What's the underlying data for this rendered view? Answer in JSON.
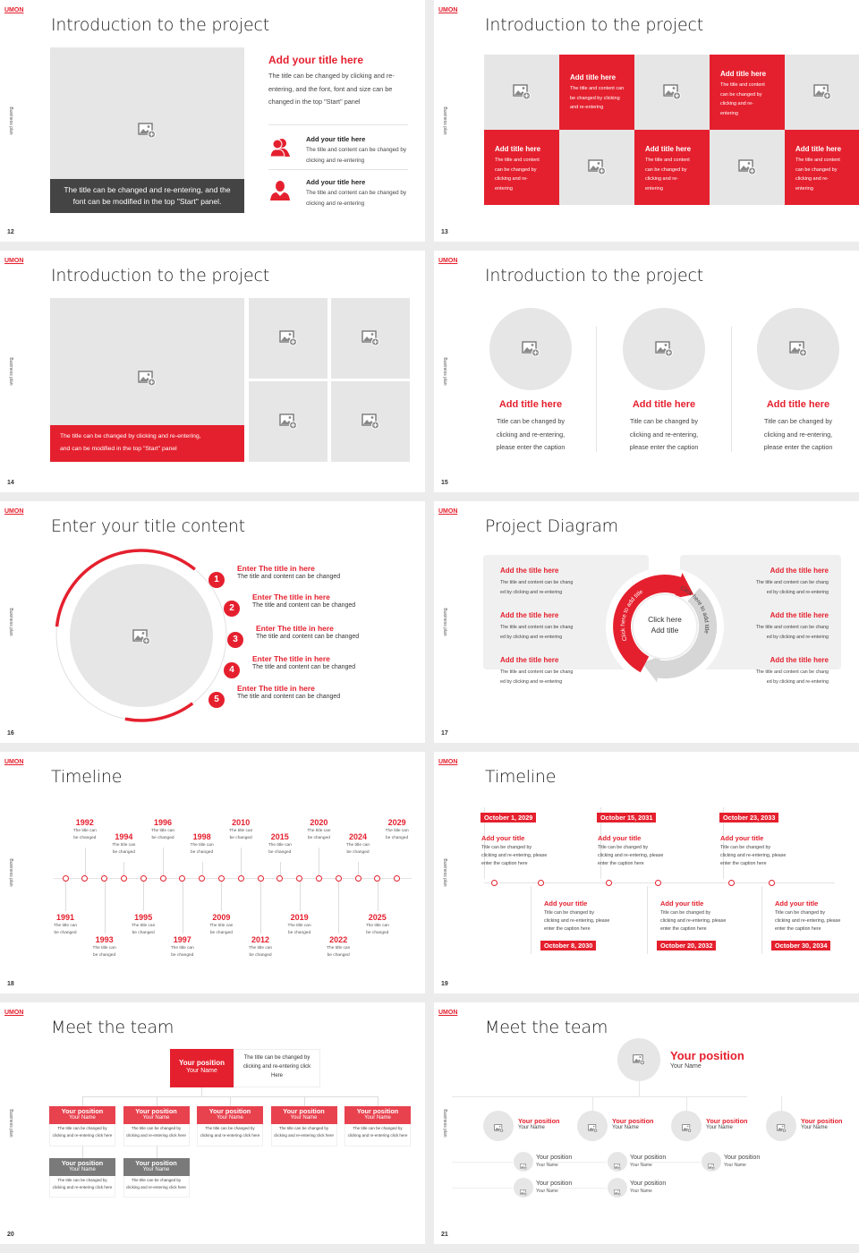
{
  "logo": "UMON",
  "side_label": "Business plan",
  "colors": {
    "accent": "#e5202e",
    "accent_light": "#e8424f",
    "placeholder": "#e6e6e6",
    "dark": "#444444",
    "muted_box": "#7a7a7a"
  },
  "slides": [
    {
      "page": "12",
      "title": "Introduction to the project",
      "caption": "The title can be changed and re-entering, and the font can be modified in the top \"Start\" panel.",
      "heading": "Add your title here",
      "paragraph": "The title can be changed by clicking and re-entering, and the font, font and size can be changed in the top \"Start\" panel",
      "items": [
        {
          "icon": "people-icon",
          "title": "Add your title here",
          "text": "The title and content can be changed by clicking and re-entering"
        },
        {
          "icon": "person-icon",
          "title": "Add your title here",
          "text": "The title and content can be changed by clicking and re-entering"
        }
      ]
    },
    {
      "page": "13",
      "title": "Introduction to the project",
      "tiles": [
        {
          "title": "Add title here",
          "text": "The title and content can be changed by clicking and re-entering"
        },
        {
          "title": "Add title here",
          "text": "The title and content can be changed by clicking and re-entering"
        },
        {
          "title": "Add title here",
          "text": "The title and content can be changed by clicking and re-entering"
        },
        {
          "title": "Add title here",
          "text": "The title and content can be changed by clicking and re-entering"
        },
        {
          "title": "Add title here",
          "text": "The title and content can be changed by clicking and re-entering"
        }
      ]
    },
    {
      "page": "14",
      "title": "Introduction to the project",
      "caption": "The title can be changed by clicking and re-entering,\nand can be modified in the top \"Start\" panel"
    },
    {
      "page": "15",
      "title": "Introduction to the project",
      "columns": [
        {
          "title": "Add title here",
          "text": "Title can be changed by\nclicking and re-entering,\nplease enter the caption"
        },
        {
          "title": "Add title here",
          "text": "Title can be changed by\nclicking and re-entering,\nplease enter the caption"
        },
        {
          "title": "Add title here",
          "text": "Title can be changed by\nclicking and re-entering,\nplease enter the caption"
        }
      ]
    },
    {
      "page": "16",
      "title": "Enter your title content",
      "items": [
        {
          "number": "1",
          "title": "Enter The title in here",
          "text": "The title and content can be changed"
        },
        {
          "number": "2",
          "title": "Enter The title in here",
          "text": "The title and content can be changed"
        },
        {
          "number": "3",
          "title": "Enter The title in here",
          "text": "The title and content can be changed"
        },
        {
          "number": "4",
          "title": "Enter The title in here",
          "text": "The title and content can be changed"
        },
        {
          "number": "5",
          "title": "Enter The title in here",
          "text": "The title and content can be changed"
        }
      ]
    },
    {
      "page": "17",
      "title": "Project Diagram",
      "center": "Click here\nAdd title",
      "arc_left": "Click here to add title",
      "arc_right": "Click here to add title",
      "left_items": [
        {
          "title": "Add the title here",
          "text": "The title and content can be chang\ned by clicking and re-entering"
        },
        {
          "title": "Add the title here",
          "text": "The title and content can be chang\ned by clicking and re-entering"
        },
        {
          "title": "Add the title here",
          "text": "The title and content can be chang\ned by clicking and re-entering"
        }
      ],
      "right_items": [
        {
          "title": "Add the title here",
          "text": "The title and content can be chang\ned by clicking and re-entering"
        },
        {
          "title": "Add the title here",
          "text": "The title and content can be chang\ned by clicking and re-entering"
        },
        {
          "title": "Add the title here",
          "text": "The title and content can be chang\ned by clicking and re-entering"
        }
      ]
    },
    {
      "page": "18",
      "title": "Timeline",
      "events": [
        {
          "year": "1991",
          "text": "The title can be changed"
        },
        {
          "year": "1992",
          "text": "The title can be changed"
        },
        {
          "year": "1993",
          "text": "The title can be changed"
        },
        {
          "year": "1994",
          "text": "The title can be changed"
        },
        {
          "year": "1995",
          "text": "The title can be changed"
        },
        {
          "year": "1996",
          "text": "The title can be changed"
        },
        {
          "year": "1997",
          "text": "The title can be changed"
        },
        {
          "year": "1998",
          "text": "The title can be changed"
        },
        {
          "year": "2009",
          "text": "The title can be changed"
        },
        {
          "year": "2010",
          "text": "The title can be changed"
        },
        {
          "year": "2012",
          "text": "The title can be changed"
        },
        {
          "year": "2015",
          "text": "The title can be changed"
        },
        {
          "year": "2019",
          "text": "The title can be changed"
        },
        {
          "year": "2020",
          "text": "The title can be changed"
        },
        {
          "year": "2022",
          "text": "The title can be changed"
        },
        {
          "year": "2024",
          "text": "The title can be changed"
        },
        {
          "year": "2025",
          "text": "The title can be changed"
        },
        {
          "year": "2029",
          "text": "The title can be changed"
        }
      ]
    },
    {
      "page": "19",
      "title": "Timeline",
      "events": [
        {
          "date": "October 1, 2029",
          "title": "Add your title",
          "text": "Title can be changed by\nclicking and re-entering, please\nenter the caption here"
        },
        {
          "date": "October 8, 2030",
          "title": "Add your title",
          "text": "Title can be changed by\nclicking and re-entering, please\nenter the caption here"
        },
        {
          "date": "October 15, 2031",
          "title": "Add your title",
          "text": "Title can be changed by\nclicking and re-entering, please\nenter the caption here"
        },
        {
          "date": "October 20, 2032",
          "title": "Add your title",
          "text": "Title can be changed by\nclicking and re-entering, please\nenter the caption here"
        },
        {
          "date": "October 23, 2033",
          "title": "Add your title",
          "text": "Title can be changed by\nclicking and re-entering, please\nenter the caption here"
        },
        {
          "date": "October 30, 2034",
          "title": "Add your title",
          "text": "Title can be changed by\nclicking and re-entering, please\nenter the caption here"
        }
      ]
    },
    {
      "page": "20",
      "title": "Meet the team",
      "lead": {
        "position": "Your position",
        "name": "Your Name",
        "text": "The title can be changed by clicking and re-entering click Here"
      },
      "members": [
        {
          "position": "Your position",
          "name": "Your Name",
          "text": "The title can be changed by clicking and re-entering click here"
        },
        {
          "position": "Your position",
          "name": "Your Name",
          "text": "The title can be changed by clicking and re-entering click here"
        },
        {
          "position": "Your position",
          "name": "Your Name",
          "text": "The title can be changed by clicking and re-entering click here"
        },
        {
          "position": "Your position",
          "name": "Your Name",
          "text": "The title can be changed by clicking and re-entering click here"
        },
        {
          "position": "Your position",
          "name": "Your Name",
          "text": "The title can be changed by clicking and re-entering click here"
        },
        {
          "position": "Your position",
          "name": "Your Name",
          "text": "The title can be changed by clicking and re-entering click here"
        },
        {
          "position": "Your position",
          "name": "Your Name",
          "text": "The title can be changed by clicking and re-entering click here"
        }
      ]
    },
    {
      "page": "21",
      "title": "Meet the team",
      "lead": {
        "position": "Your position",
        "name": "Your Name"
      },
      "level1": [
        {
          "position": "Your position",
          "name": "Your Name"
        },
        {
          "position": "Your position",
          "name": "Your Name"
        },
        {
          "position": "Your position",
          "name": "Your Name"
        },
        {
          "position": "Your position",
          "name": "Your Name"
        }
      ],
      "level2": [
        {
          "position": "Your position",
          "name": "Your Name"
        },
        {
          "position": "Your position",
          "name": "Your Name"
        },
        {
          "position": "Your position",
          "name": "Your Name"
        },
        {
          "position": "Your position",
          "name": "Your Name"
        },
        {
          "position": "Your position",
          "name": "Your Name"
        }
      ]
    }
  ]
}
